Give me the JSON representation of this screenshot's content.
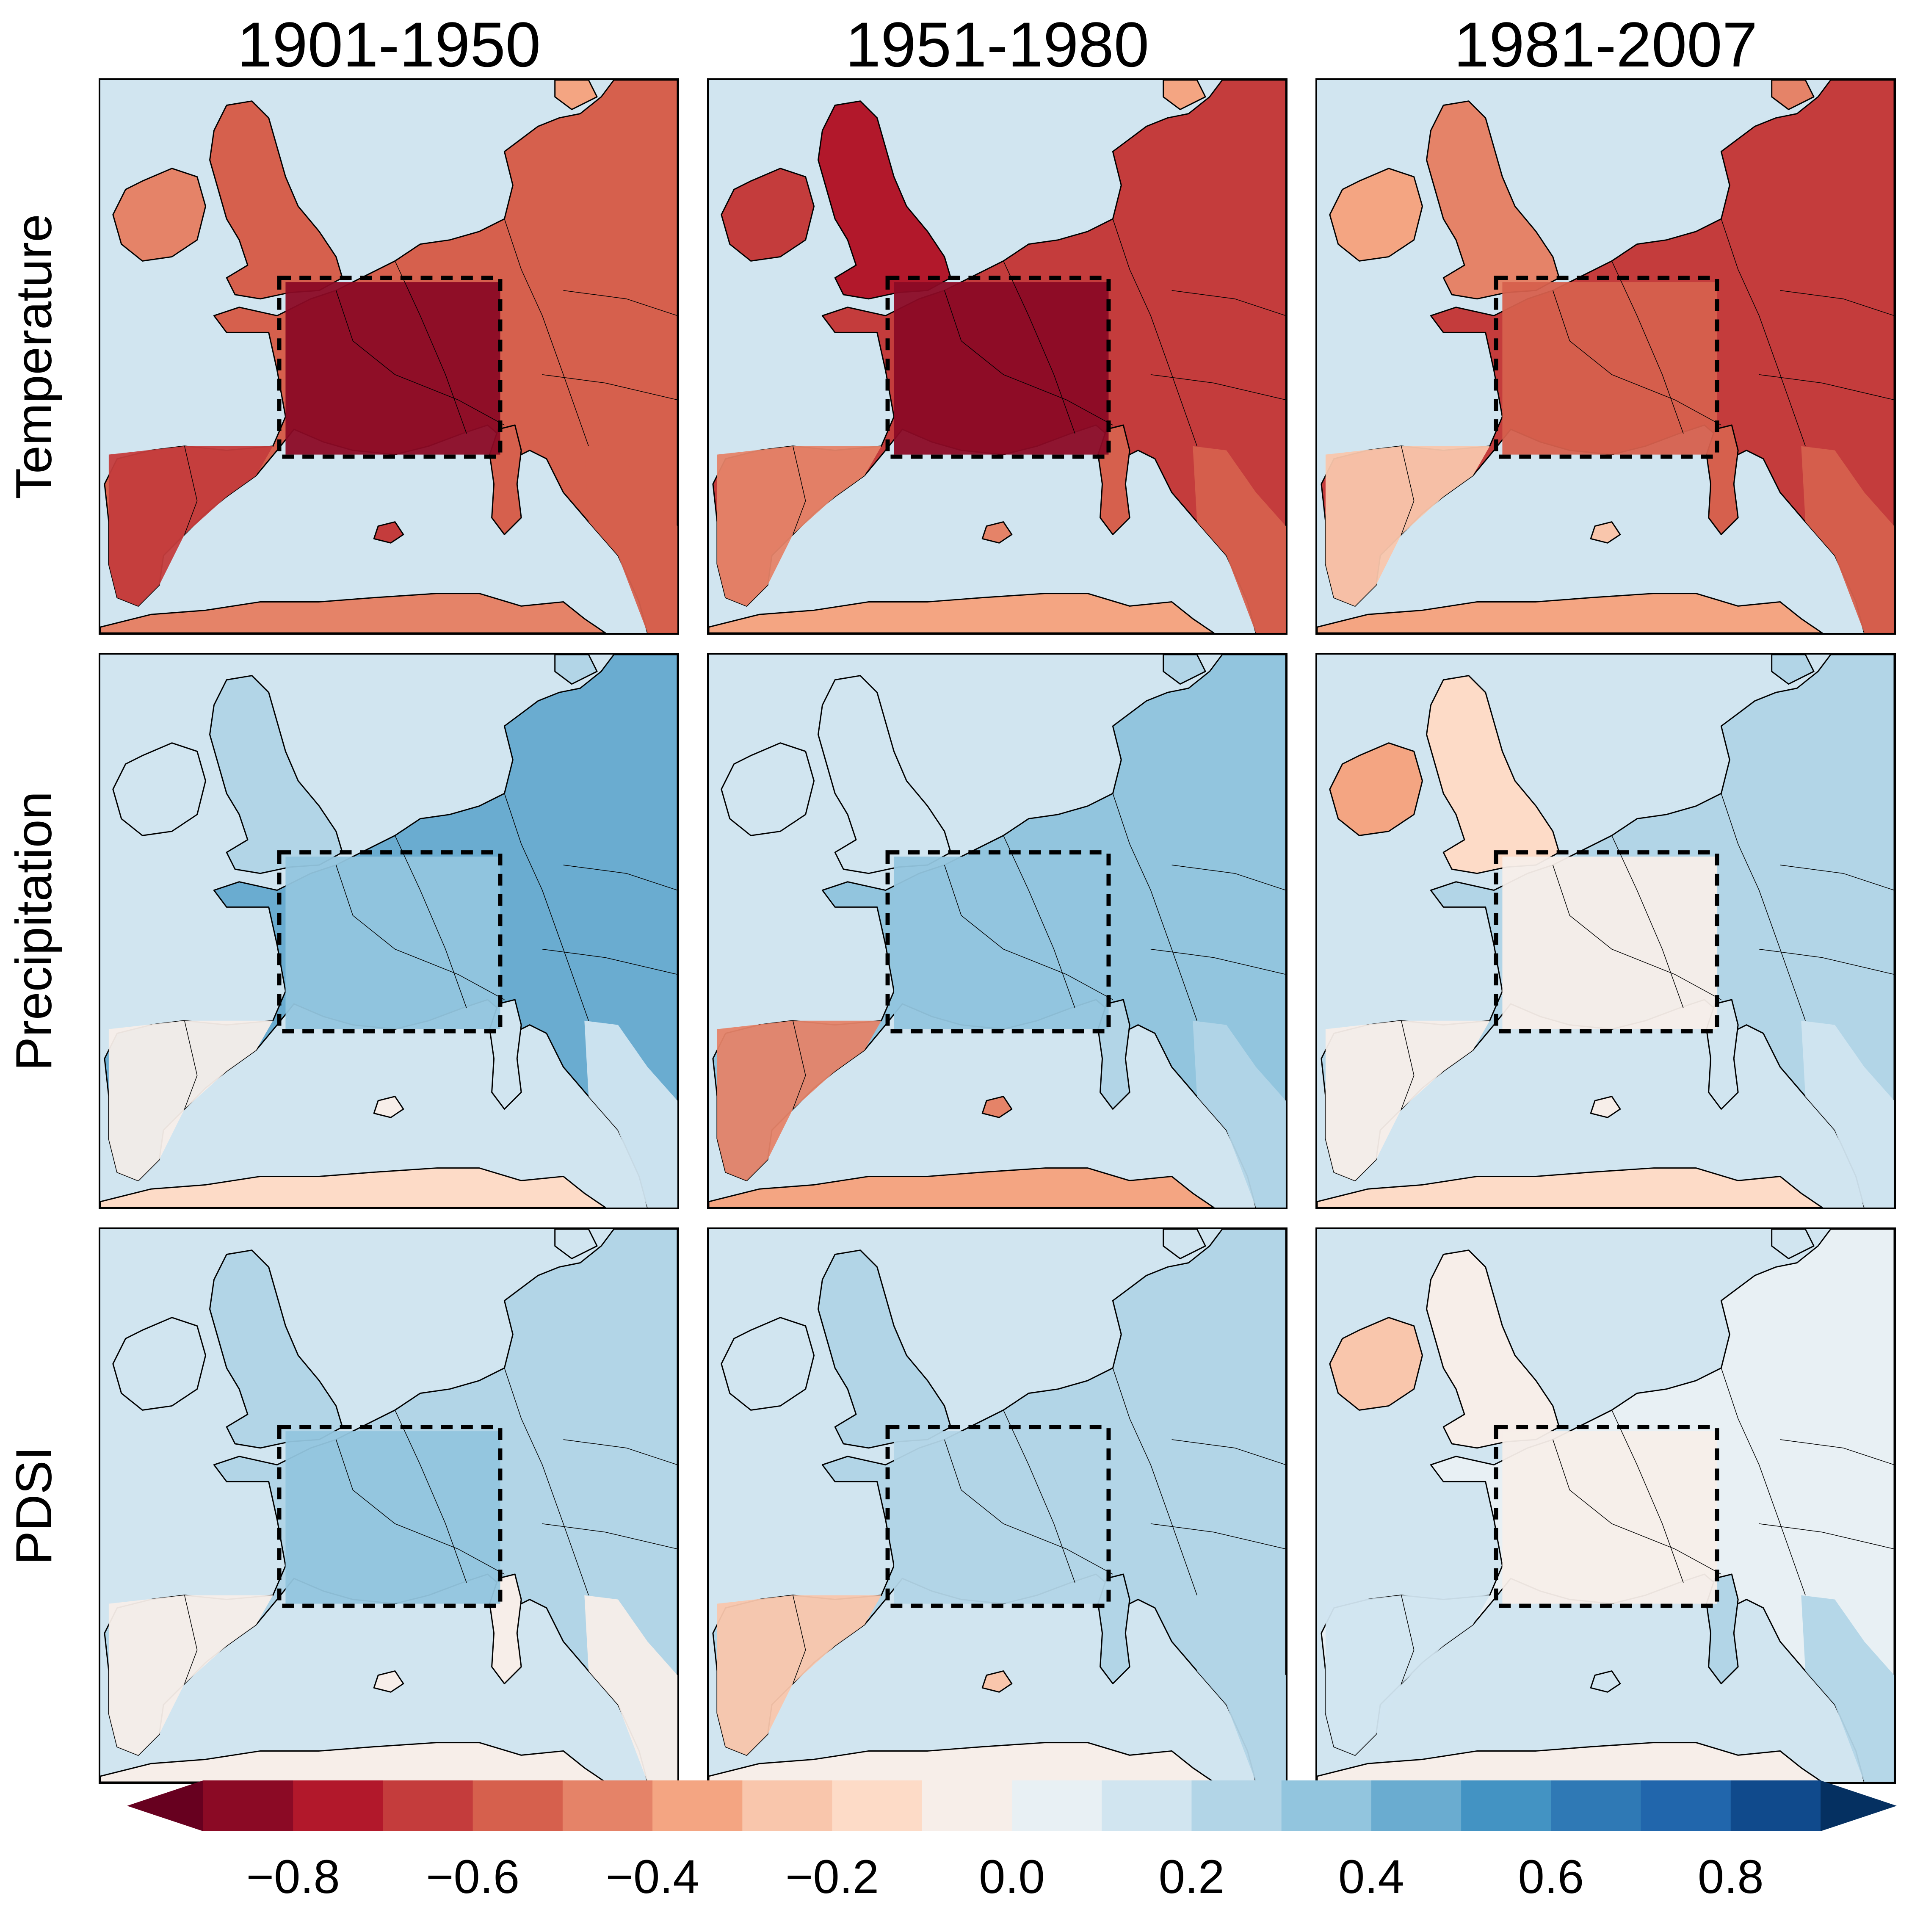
{
  "column_titles": [
    "1901-1950",
    "1951-1980",
    "1981-2007"
  ],
  "row_titles": [
    "Temperature",
    "Precipitation",
    "PDSI"
  ],
  "colorbar": {
    "levels": [
      -0.9,
      -0.8,
      -0.7,
      -0.6,
      -0.5,
      -0.4,
      -0.3,
      -0.2,
      -0.1,
      0.0,
      0.1,
      0.2,
      0.3,
      0.4,
      0.5,
      0.6,
      0.7,
      0.8,
      0.9
    ],
    "colors": [
      "#67001f",
      "#8b0a25",
      "#b2182b",
      "#c43c3c",
      "#d6604d",
      "#e58368",
      "#f4a582",
      "#f9c6ac",
      "#fddbc7",
      "#f7eee9",
      "#e8f0f4",
      "#d1e5f0",
      "#b2d5e7",
      "#92c5de",
      "#6aacd0",
      "#4393c3",
      "#2f79b5",
      "#2166ac",
      "#104a8c",
      "#053061"
    ],
    "extend": "both",
    "tick_labels": [
      "−0.8",
      "−0.6",
      "−0.4",
      "−0.2",
      "0.0",
      "0.2",
      "0.4",
      "0.6",
      "0.8"
    ],
    "tick_values": [
      -0.8,
      -0.6,
      -0.4,
      -0.2,
      0.0,
      0.2,
      0.4,
      0.6,
      0.8
    ]
  },
  "colors": {
    "sea": "#d1e5f0",
    "frame": "#000000",
    "coastline": "#000000"
  },
  "panel_region_anomalies": [
    [
      {
        "background": -0.6,
        "britain": -0.55,
        "ireland": -0.5,
        "france_box": -0.85,
        "central_europe": -0.6,
        "iberia": -0.65,
        "north_africa": -0.5,
        "italy": -0.6,
        "scandinavia": -0.4
      },
      {
        "background": -0.6,
        "britain": -0.8,
        "ireland": -0.7,
        "france_box": -0.85,
        "central_europe": -0.65,
        "iberia": -0.45,
        "north_africa": -0.4,
        "italy": -0.6,
        "scandinavia": -0.35
      },
      {
        "background": -0.5,
        "britain": -0.45,
        "ireland": -0.4,
        "france_box": -0.55,
        "central_europe": -0.65,
        "iberia": -0.25,
        "north_africa": -0.35,
        "italy": -0.55,
        "scandinavia": -0.45
      }
    ],
    [
      {
        "background": 0.2,
        "britain": 0.25,
        "ireland": 0.15,
        "france_box": 0.35,
        "central_europe": 0.4,
        "iberia": -0.1,
        "north_africa": -0.2,
        "italy": 0.15,
        "scandinavia": 0.25
      },
      {
        "background": 0.2,
        "britain": 0.15,
        "ireland": 0.1,
        "france_box": 0.3,
        "central_europe": 0.35,
        "iberia": -0.45,
        "north_africa": -0.35,
        "italy": 0.2,
        "scandinavia": 0.2
      },
      {
        "background": 0.1,
        "britain": -0.15,
        "ireland": -0.35,
        "france_box": -0.1,
        "central_europe": 0.25,
        "iberia": -0.05,
        "north_africa": -0.15,
        "italy": 0.15,
        "scandinavia": 0.2
      }
    ],
    [
      {
        "background": 0.15,
        "britain": 0.2,
        "ireland": 0.1,
        "france_box": 0.3,
        "central_europe": 0.25,
        "iberia": -0.05,
        "north_africa": -0.1,
        "italy": -0.1,
        "scandinavia": 0.15
      },
      {
        "background": 0.15,
        "britain": 0.2,
        "ireland": 0.1,
        "france_box": 0.2,
        "central_europe": 0.25,
        "iberia": -0.25,
        "north_africa": -0.1,
        "italy": 0.25,
        "scandinavia": 0.15
      },
      {
        "background": 0.05,
        "britain": -0.05,
        "ireland": -0.3,
        "france_box": -0.1,
        "central_europe": 0.05,
        "iberia": 0.1,
        "north_africa": -0.05,
        "italy": 0.25,
        "scandinavia": 0.1
      }
    ]
  ]
}
